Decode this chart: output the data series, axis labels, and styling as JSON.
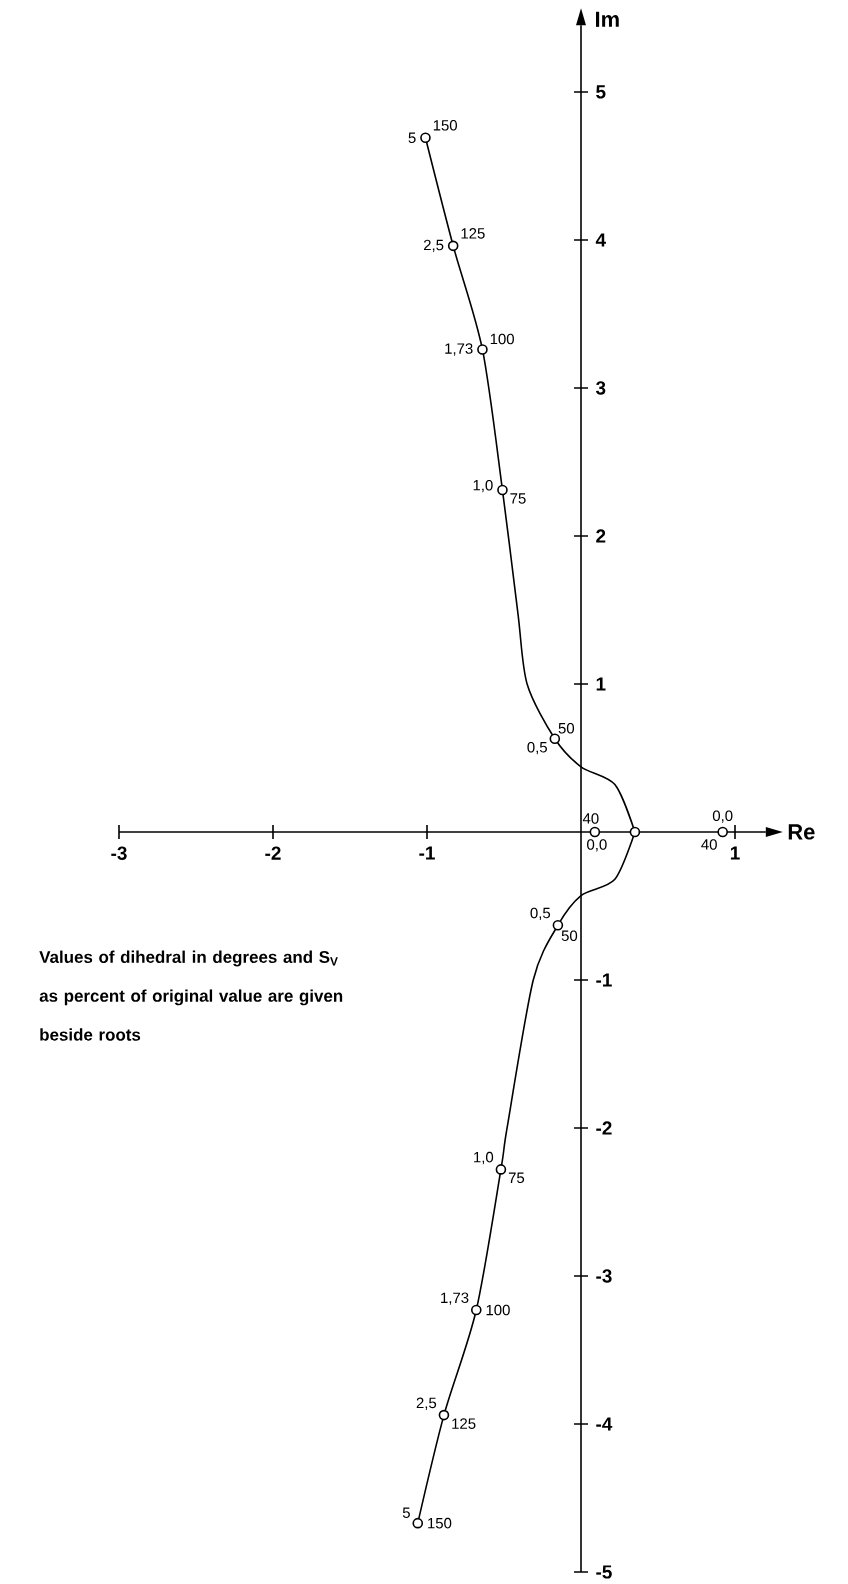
{
  "chart_data": {
    "type": "line",
    "xlabel": "Re",
    "ylabel": "Im",
    "xlim": [
      -3,
      1.2
    ],
    "ylim": [
      -5,
      5.45
    ],
    "xticks": [
      -3,
      -2,
      -1,
      1
    ],
    "yticks": [
      -5,
      -4,
      -3,
      -2,
      -1,
      1,
      2,
      3,
      4,
      5
    ],
    "series": [
      {
        "type": "line",
        "color": "#000000",
        "x": [
          -1.01,
          -0.83,
          -0.64,
          -0.51,
          -0.41,
          -0.35,
          -0.17,
          0,
          0.22,
          0.35
        ],
        "values": [
          4.69,
          3.96,
          3.26,
          2.31,
          1.48,
          1.0,
          0.63,
          0.44,
          0.32,
          0
        ]
      },
      {
        "type": "line",
        "color": "#000000",
        "x": [
          0.35,
          0.22,
          0,
          -0.15,
          -0.31,
          -0.48,
          -0.52,
          -0.68,
          -0.89,
          -1.06
        ],
        "values": [
          0,
          -0.32,
          -0.43,
          -0.63,
          -1.0,
          -2.0,
          -2.28,
          -3.23,
          -3.94,
          -4.67
        ]
      },
      {
        "type": "scatter",
        "color": "#000000",
        "marker": "circle",
        "x": [
          -1.01,
          -0.83,
          -0.64,
          -0.51,
          -0.17,
          0.09,
          0.35,
          0.92,
          -0.15,
          -0.52,
          -0.68,
          -0.89,
          -1.06
        ],
        "values": [
          4.69,
          3.96,
          3.26,
          2.31,
          0.63,
          0,
          0,
          0,
          -0.63,
          -2.28,
          -3.23,
          -3.94,
          -4.67
        ]
      }
    ],
    "annotations": [
      {
        "text": "5",
        "x": -1.01,
        "y": 4.69
      },
      {
        "text": "150",
        "x": -1.01,
        "y": 4.69
      },
      {
        "text": "2,5",
        "x": -0.83,
        "y": 3.96
      },
      {
        "text": "125",
        "x": -0.83,
        "y": 3.96
      },
      {
        "text": "1,73",
        "x": -0.64,
        "y": 3.26
      },
      {
        "text": "100",
        "x": -0.64,
        "y": 3.26
      },
      {
        "text": "1,0",
        "x": -0.51,
        "y": 2.31
      },
      {
        "text": "75",
        "x": -0.51,
        "y": 2.31
      },
      {
        "text": "0,5",
        "x": -0.17,
        "y": 0.63
      },
      {
        "text": "50",
        "x": -0.17,
        "y": 0.63
      },
      {
        "text": "40",
        "x": 0.09,
        "y": 0
      },
      {
        "text": "0,0",
        "x": 0.09,
        "y": 0
      },
      {
        "text": "0,0",
        "x": 0.92,
        "y": 0
      },
      {
        "text": "40",
        "x": 0.92,
        "y": 0
      },
      {
        "text": "0,5",
        "x": -0.15,
        "y": -0.63
      },
      {
        "text": "50",
        "x": -0.15,
        "y": -0.63
      },
      {
        "text": "1,0",
        "x": -0.52,
        "y": -2.28
      },
      {
        "text": "75",
        "x": -0.52,
        "y": -2.28
      },
      {
        "text": "1,73",
        "x": -0.68,
        "y": -3.23
      },
      {
        "text": "100",
        "x": -0.68,
        "y": -3.23
      },
      {
        "text": "2,5",
        "x": -0.89,
        "y": -3.94
      },
      {
        "text": "125",
        "x": -0.89,
        "y": -3.94
      },
      {
        "text": "5",
        "x": -1.06,
        "y": -4.67
      },
      {
        "text": "150",
        "x": -1.06,
        "y": -4.67
      },
      "Values of dihedral in degrees and S$_{V}$ as percent of original value are given beside roots"
    ]
  }
}
